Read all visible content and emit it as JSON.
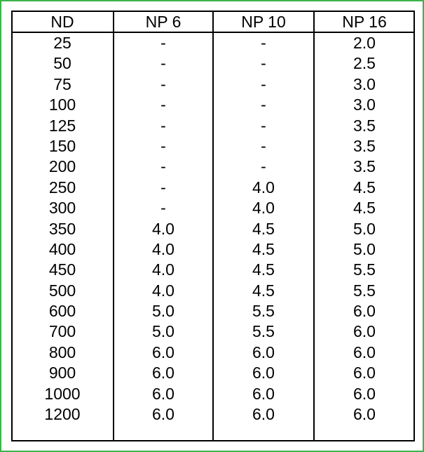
{
  "table": {
    "headers": [
      "ND",
      "NP 6",
      "NP 10",
      "NP 16"
    ],
    "rows": [
      [
        "25",
        "-",
        "-",
        "2.0"
      ],
      [
        "50",
        "-",
        "-",
        "2.5"
      ],
      [
        "75",
        "-",
        "-",
        "3.0"
      ],
      [
        "100",
        "-",
        "-",
        "3.0"
      ],
      [
        "125",
        "-",
        "-",
        "3.5"
      ],
      [
        "150",
        "-",
        "-",
        "3.5"
      ],
      [
        "200",
        "-",
        "-",
        "3.5"
      ],
      [
        "250",
        "-",
        "4.0",
        "4.5"
      ],
      [
        "300",
        "-",
        "4.0",
        "4.5"
      ],
      [
        "350",
        "4.0",
        "4.5",
        "5.0"
      ],
      [
        "400",
        "4.0",
        "4.5",
        "5.0"
      ],
      [
        "450",
        "4.0",
        "4.5",
        "5.5"
      ],
      [
        "500",
        "4.0",
        "4.5",
        "5.5"
      ],
      [
        "600",
        "5.0",
        "5.5",
        "6.0"
      ],
      [
        "700",
        "5.0",
        "5.5",
        "6.0"
      ],
      [
        "800",
        "6.0",
        "6.0",
        "6.0"
      ],
      [
        "900",
        "6.0",
        "6.0",
        "6.0"
      ],
      [
        "1000",
        "6.0",
        "6.0",
        "6.0"
      ],
      [
        "1200",
        "6.0",
        "6.0",
        "6.0"
      ]
    ]
  },
  "colors": {
    "frame_border": "#3cb44b",
    "grid": "#000000",
    "text": "#000000",
    "background": "#ffffff"
  }
}
